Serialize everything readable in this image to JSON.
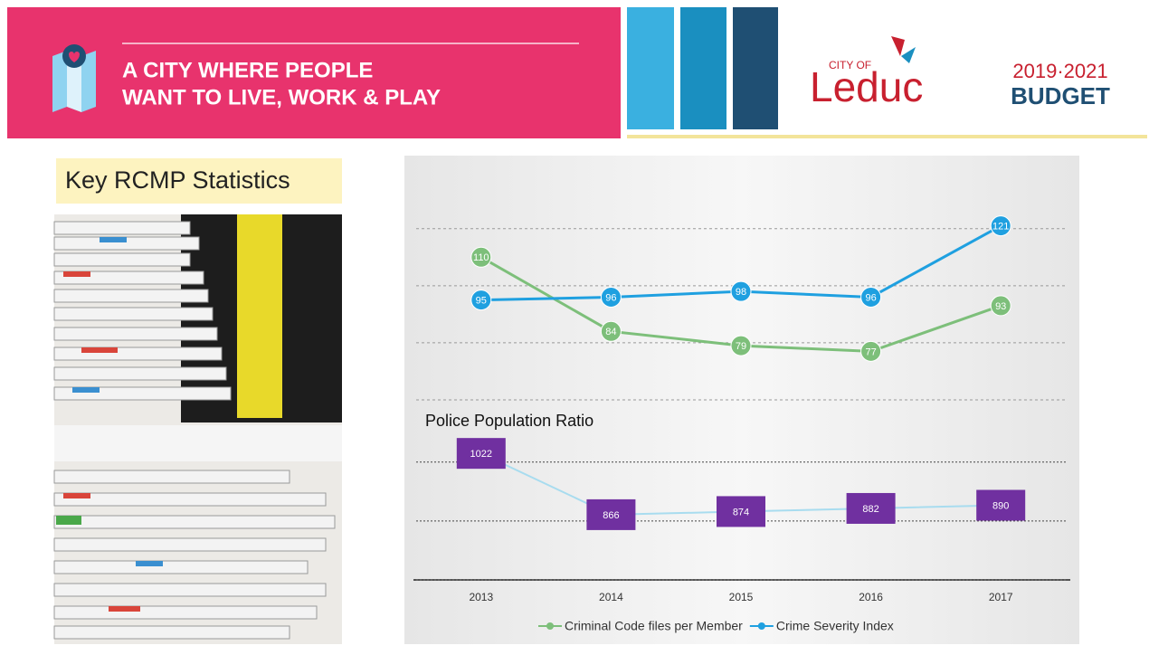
{
  "header": {
    "tagline": [
      "A CITY WHERE PEOPLE",
      "WANT TO LIVE, WORK & PLAY"
    ],
    "logo_prefix": "CITY OF",
    "logo_name": "Leduc",
    "budget_years": "2019·2021",
    "budget_label": "BUDGET"
  },
  "section_title": "Key RCMP Statistics",
  "chart_data": [
    {
      "type": "line",
      "categories": [
        "2013",
        "2014",
        "2015",
        "2016",
        "2017"
      ],
      "series": [
        {
          "name": "Criminal Code files per Member",
          "color": "#7dbf7a",
          "values": [
            110,
            84,
            79,
            77,
            93
          ]
        },
        {
          "name": "Crime Severity Index",
          "color": "#1fa0e0",
          "values": [
            95,
            96,
            98,
            96,
            121
          ]
        }
      ],
      "ylim": [
        60,
        125
      ],
      "yticks": [
        60,
        80,
        100,
        120
      ],
      "grid": true,
      "legend": "bottom"
    },
    {
      "type": "labeled-line",
      "title": "Police Population Ratio",
      "values": [
        1022,
        866,
        874,
        882,
        890
      ],
      "color": "#a8dcef",
      "label_color": "#7030a0",
      "ylim": [
        700,
        1050
      ],
      "yticks": [
        700,
        850,
        1000
      ],
      "grid": true
    }
  ]
}
